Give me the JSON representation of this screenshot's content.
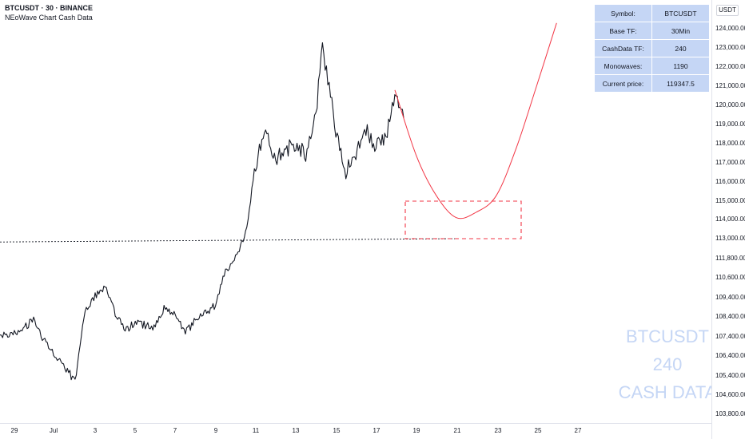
{
  "header": {
    "symbol_line": "BTCUSDT · 30 · BINANCE",
    "indicator_line": "NEoWave Chart Cash Data"
  },
  "info_table": [
    {
      "key": "Symbol:",
      "value": "BTCUSDT"
    },
    {
      "key": "Base TF:",
      "value": "30Min"
    },
    {
      "key": "CashData TF:",
      "value": "240"
    },
    {
      "key": "Monowaves:",
      "value": "1190"
    },
    {
      "key": "Current price:",
      "value": "119347.5"
    }
  ],
  "watermark": [
    "BTCUSDT",
    "240",
    "CASH DATA"
  ],
  "price_scale": {
    "currency": "USDT",
    "labels": [
      {
        "text": "124,000.00",
        "value": 124000
      },
      {
        "text": "123,000.00",
        "value": 123000
      },
      {
        "text": "122,000.00",
        "value": 122000
      },
      {
        "text": "121,000.00",
        "value": 121000
      },
      {
        "text": "120,000.00",
        "value": 120000
      },
      {
        "text": "119,000.00",
        "value": 119000
      },
      {
        "text": "118,000.00",
        "value": 118000
      },
      {
        "text": "117,000.00",
        "value": 117000
      },
      {
        "text": "116,000.00",
        "value": 116000
      },
      {
        "text": "115,000.00",
        "value": 115000
      },
      {
        "text": "114,000.00",
        "value": 114000
      },
      {
        "text": "113,000.00",
        "value": 113000
      },
      {
        "text": "111,800.00",
        "value": 111800
      },
      {
        "text": "110,600.00",
        "value": 110600
      },
      {
        "text": "109,400.00",
        "value": 109400
      },
      {
        "text": "108,400.00",
        "value": 108400
      },
      {
        "text": "107,400.00",
        "value": 107400
      },
      {
        "text": "106,400.00",
        "value": 106400
      },
      {
        "text": "105,400.00",
        "value": 105400
      },
      {
        "text": "104,600.00",
        "value": 104600
      },
      {
        "text": "103,800.00",
        "value": 103800
      }
    ]
  },
  "time_scale": {
    "labels": [
      "29",
      "Jul",
      "3",
      "5",
      "7",
      "9",
      "11",
      "13",
      "15",
      "17",
      "19",
      "21",
      "23",
      "25",
      "27"
    ]
  },
  "colors": {
    "price_line": "#131722",
    "projection": "#f23645",
    "watermark": "#c5d6f5",
    "table_bg": "#c5d6f5"
  },
  "chart_data": {
    "type": "line",
    "symbol": "BTCUSDT",
    "x_axis": "date (Jun 28 – Jul 27)",
    "y_axis": "price (USDT)",
    "ylim": [
      103800,
      124000
    ],
    "series": [
      {
        "values": [
          {
            "x": "Jun 28",
            "y": 107500
          },
          {
            "x": "Jun 29",
            "y": 107600
          },
          {
            "x": "Jun 30",
            "y": 108200
          },
          {
            "x": "Jun 30",
            "y": 107300
          },
          {
            "x": "Jul 1",
            "y": 106600
          },
          {
            "x": "Jul 1",
            "y": 105900
          },
          {
            "x": "Jul 2",
            "y": 105200
          },
          {
            "x": "Jul 2",
            "y": 108700
          },
          {
            "x": "Jul 3",
            "y": 109500
          },
          {
            "x": "Jul 3",
            "y": 110100
          },
          {
            "x": "Jul 4",
            "y": 108500
          },
          {
            "x": "Jul 4",
            "y": 107700
          },
          {
            "x": "Jul 5",
            "y": 108100
          },
          {
            "x": "Jul 6",
            "y": 107900
          },
          {
            "x": "Jul 6",
            "y": 109000
          },
          {
            "x": "Jul 7",
            "y": 108400
          },
          {
            "x": "Jul 7",
            "y": 107600
          },
          {
            "x": "Jul 8",
            "y": 108200
          },
          {
            "x": "Jul 9",
            "y": 109000
          },
          {
            "x": "Jul 9",
            "y": 111000
          },
          {
            "x": "Jul 10",
            "y": 111900
          },
          {
            "x": "Jul 10",
            "y": 113200
          },
          {
            "x": "Jul 11",
            "y": 117000
          },
          {
            "x": "Jul 11",
            "y": 118500
          },
          {
            "x": "Jul 12",
            "y": 117200
          },
          {
            "x": "Jul 12",
            "y": 117700
          },
          {
            "x": "Jul 13",
            "y": 118000
          },
          {
            "x": "Jul 13",
            "y": 117500
          },
          {
            "x": "Jul 14",
            "y": 119500
          },
          {
            "x": "Jul 14",
            "y": 123000
          },
          {
            "x": "Jul 14",
            "y": 121000
          },
          {
            "x": "Jul 15",
            "y": 118500
          },
          {
            "x": "Jul 15",
            "y": 116500
          },
          {
            "x": "Jul 16",
            "y": 117500
          },
          {
            "x": "Jul 16",
            "y": 118800
          },
          {
            "x": "Jul 17",
            "y": 117800
          },
          {
            "x": "Jul 17",
            "y": 118500
          },
          {
            "x": "Jul 18",
            "y": 120500
          },
          {
            "x": "Jul 18",
            "y": 119347.5
          }
        ]
      },
      {
        "values": [
          {
            "x": "Jul 18",
            "y": 120800
          },
          {
            "x": "Jul 19",
            "y": 117400
          },
          {
            "x": "Jul 20",
            "y": 115300
          },
          {
            "x": "Jul 21",
            "y": 114100
          },
          {
            "x": "Jul 22",
            "y": 114400
          },
          {
            "x": "Jul 23",
            "y": 115300
          },
          {
            "x": "Jul 24",
            "y": 117800
          },
          {
            "x": "Jul 25",
            "y": 121000
          },
          {
            "x": "Jul 26",
            "y": 124300
          }
        ]
      }
    ],
    "zone": {
      "x_start": "Jul 18",
      "x_end": "Jul 23",
      "y_low": 113000,
      "y_high": 115000
    },
    "horizontal_line": {
      "x_start": "Jun 28",
      "x_end": "Jul 21",
      "y_start": 112800,
      "y_end": 113000
    },
    "legend": "none",
    "grid": false
  }
}
